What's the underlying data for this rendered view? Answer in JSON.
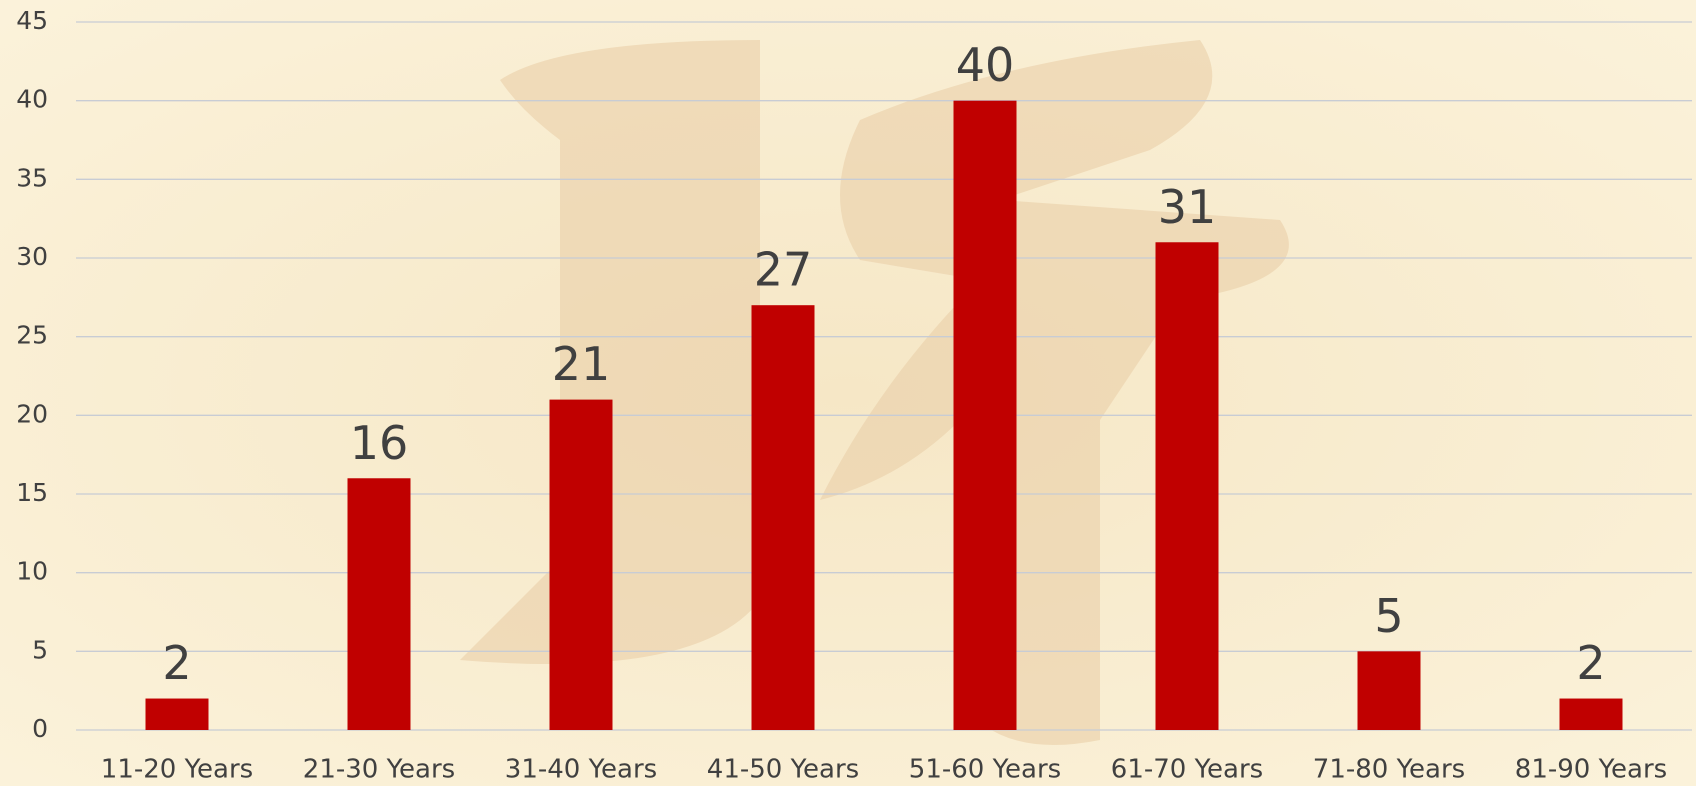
{
  "chart_data": {
    "type": "bar",
    "categories": [
      "11-20 Years",
      "21-30 Years",
      "31-40 Years",
      "41-50 Years",
      "51-60 Years",
      "61-70 Years",
      "71-80 Years",
      "81-90 Years"
    ],
    "values": [
      2,
      16,
      21,
      27,
      40,
      31,
      5,
      2
    ],
    "color": "#c00000",
    "ylim": [
      0,
      45
    ],
    "yticks": [
      0,
      5,
      10,
      15,
      20,
      25,
      30,
      35,
      40,
      45
    ],
    "grid": true
  }
}
